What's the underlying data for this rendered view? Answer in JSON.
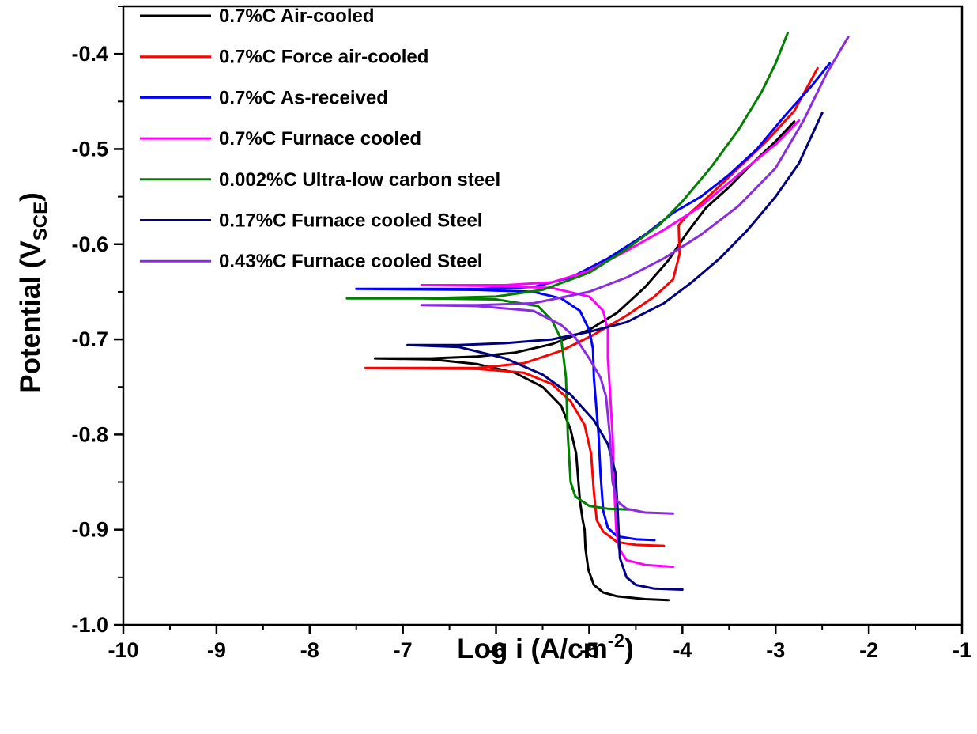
{
  "chart_data": {
    "type": "line",
    "title": "",
    "xlabel": {
      "main": "Log i (A/cm",
      "sup": "-2",
      "tail": ")"
    },
    "ylabel": {
      "main": "Potential (V",
      "sub": "SCE",
      "tail": ")"
    },
    "xlim": [
      -10,
      -1
    ],
    "ylim": [
      -1.0,
      -0.35
    ],
    "x_ticks": [
      "-10",
      "-9",
      "-8",
      "-7",
      "-6",
      "-5",
      "-4",
      "-3",
      "-2",
      "-1"
    ],
    "y_ticks": [
      "-1.0",
      "-0.9",
      "-0.8",
      "-0.7",
      "-0.6",
      "-0.5",
      "-0.4"
    ],
    "x_tick_values": [
      -10,
      -9,
      -8,
      -7,
      -6,
      -5,
      -4,
      -3,
      -2,
      -1
    ],
    "y_tick_values": [
      -1.0,
      -0.9,
      -0.8,
      -0.7,
      -0.6,
      -0.5,
      -0.4
    ],
    "grid": false,
    "legend_position": "top-left",
    "series": [
      {
        "name": "0.7%C Air-cooled",
        "color": "#000000",
        "points": [
          [
            -4.15,
            -0.974
          ],
          [
            -4.4,
            -0.973
          ],
          [
            -4.7,
            -0.97
          ],
          [
            -4.85,
            -0.966
          ],
          [
            -4.95,
            -0.958
          ],
          [
            -5.01,
            -0.942
          ],
          [
            -5.04,
            -0.92
          ],
          [
            -5.05,
            -0.9
          ],
          [
            -5.07,
            -0.89
          ],
          [
            -5.1,
            -0.87
          ],
          [
            -5.14,
            -0.82
          ],
          [
            -5.2,
            -0.795
          ],
          [
            -5.3,
            -0.77
          ],
          [
            -5.5,
            -0.75
          ],
          [
            -5.8,
            -0.735
          ],
          [
            -6.2,
            -0.726
          ],
          [
            -6.7,
            -0.721
          ],
          [
            -7.3,
            -0.72
          ],
          [
            -6.7,
            -0.72
          ],
          [
            -6.2,
            -0.718
          ],
          [
            -5.8,
            -0.714
          ],
          [
            -5.4,
            -0.705
          ],
          [
            -5.0,
            -0.69
          ],
          [
            -4.7,
            -0.672
          ],
          [
            -4.4,
            -0.645
          ],
          [
            -4.15,
            -0.617
          ],
          [
            -3.95,
            -0.588
          ],
          [
            -3.75,
            -0.562
          ],
          [
            -3.5,
            -0.54
          ],
          [
            -3.25,
            -0.515
          ],
          [
            -3.0,
            -0.492
          ],
          [
            -2.8,
            -0.471
          ]
        ]
      },
      {
        "name": "0.7%C Force air-cooled",
        "color": "#ff0000",
        "points": [
          [
            -4.2,
            -0.917
          ],
          [
            -4.5,
            -0.916
          ],
          [
            -4.7,
            -0.913
          ],
          [
            -4.85,
            -0.902
          ],
          [
            -4.92,
            -0.89
          ],
          [
            -4.95,
            -0.86
          ],
          [
            -4.98,
            -0.82
          ],
          [
            -5.05,
            -0.79
          ],
          [
            -5.2,
            -0.765
          ],
          [
            -5.4,
            -0.747
          ],
          [
            -5.7,
            -0.735
          ],
          [
            -6.2,
            -0.731
          ],
          [
            -7.4,
            -0.73
          ],
          [
            -6.2,
            -0.73
          ],
          [
            -5.7,
            -0.725
          ],
          [
            -5.3,
            -0.712
          ],
          [
            -4.95,
            -0.695
          ],
          [
            -4.6,
            -0.675
          ],
          [
            -4.3,
            -0.655
          ],
          [
            -4.1,
            -0.637
          ],
          [
            -4.03,
            -0.61
          ],
          [
            -4.04,
            -0.58
          ],
          [
            -3.95,
            -0.57
          ],
          [
            -3.7,
            -0.548
          ],
          [
            -3.4,
            -0.52
          ],
          [
            -3.1,
            -0.492
          ],
          [
            -2.8,
            -0.46
          ],
          [
            -2.55,
            -0.415
          ]
        ]
      },
      {
        "name": "0.7%C As-received",
        "color": "#0000ff",
        "points": [
          [
            -4.3,
            -0.911
          ],
          [
            -4.5,
            -0.91
          ],
          [
            -4.7,
            -0.907
          ],
          [
            -4.8,
            -0.898
          ],
          [
            -4.85,
            -0.88
          ],
          [
            -4.88,
            -0.84
          ],
          [
            -4.9,
            -0.8
          ],
          [
            -4.95,
            -0.74
          ],
          [
            -4.96,
            -0.71
          ],
          [
            -5.0,
            -0.69
          ],
          [
            -5.1,
            -0.67
          ],
          [
            -5.3,
            -0.657
          ],
          [
            -5.6,
            -0.65
          ],
          [
            -6.2,
            -0.648
          ],
          [
            -7.5,
            -0.647
          ],
          [
            -6.2,
            -0.647
          ],
          [
            -5.6,
            -0.645
          ],
          [
            -5.2,
            -0.635
          ],
          [
            -4.8,
            -0.615
          ],
          [
            -4.4,
            -0.59
          ],
          [
            -4.1,
            -0.567
          ],
          [
            -3.8,
            -0.55
          ],
          [
            -3.5,
            -0.527
          ],
          [
            -3.2,
            -0.5
          ],
          [
            -2.9,
            -0.465
          ],
          [
            -2.6,
            -0.432
          ],
          [
            -2.42,
            -0.41
          ]
        ]
      },
      {
        "name": "0.7%C Furnace cooled",
        "color": "#ff00ff",
        "points": [
          [
            -4.1,
            -0.939
          ],
          [
            -4.4,
            -0.937
          ],
          [
            -4.6,
            -0.932
          ],
          [
            -4.68,
            -0.92
          ],
          [
            -4.71,
            -0.9
          ],
          [
            -4.73,
            -0.86
          ],
          [
            -4.75,
            -0.8
          ],
          [
            -4.78,
            -0.75
          ],
          [
            -4.8,
            -0.72
          ],
          [
            -4.8,
            -0.69
          ],
          [
            -4.85,
            -0.67
          ],
          [
            -5.0,
            -0.655
          ],
          [
            -5.4,
            -0.646
          ],
          [
            -5.9,
            -0.644
          ],
          [
            -6.8,
            -0.643
          ],
          [
            -5.9,
            -0.643
          ],
          [
            -5.4,
            -0.64
          ],
          [
            -5.0,
            -0.628
          ],
          [
            -4.6,
            -0.607
          ],
          [
            -4.2,
            -0.585
          ],
          [
            -3.8,
            -0.56
          ],
          [
            -3.4,
            -0.527
          ],
          [
            -3.0,
            -0.495
          ],
          [
            -2.75,
            -0.47
          ]
        ]
      },
      {
        "name": "0.002%C Ultra-low carbon steel",
        "color": "#008000",
        "points": [
          [
            -4.55,
            -0.879
          ],
          [
            -4.8,
            -0.878
          ],
          [
            -5.0,
            -0.875
          ],
          [
            -5.15,
            -0.865
          ],
          [
            -5.2,
            -0.85
          ],
          [
            -5.23,
            -0.8
          ],
          [
            -5.25,
            -0.74
          ],
          [
            -5.3,
            -0.7
          ],
          [
            -5.4,
            -0.68
          ],
          [
            -5.55,
            -0.665
          ],
          [
            -6.0,
            -0.658
          ],
          [
            -6.8,
            -0.657
          ],
          [
            -7.6,
            -0.657
          ],
          [
            -6.8,
            -0.657
          ],
          [
            -6.0,
            -0.655
          ],
          [
            -5.5,
            -0.648
          ],
          [
            -5.0,
            -0.63
          ],
          [
            -4.6,
            -0.605
          ],
          [
            -4.25,
            -0.58
          ],
          [
            -4.0,
            -0.555
          ],
          [
            -3.7,
            -0.52
          ],
          [
            -3.4,
            -0.48
          ],
          [
            -3.15,
            -0.44
          ],
          [
            -3.0,
            -0.41
          ],
          [
            -2.87,
            -0.378
          ]
        ]
      },
      {
        "name": "0.17%C Furnace cooled Steel",
        "color": "#000080",
        "points": [
          [
            -4.0,
            -0.963
          ],
          [
            -4.3,
            -0.962
          ],
          [
            -4.5,
            -0.958
          ],
          [
            -4.6,
            -0.95
          ],
          [
            -4.67,
            -0.93
          ],
          [
            -4.7,
            -0.87
          ],
          [
            -4.72,
            -0.84
          ],
          [
            -4.8,
            -0.81
          ],
          [
            -4.95,
            -0.785
          ],
          [
            -5.2,
            -0.758
          ],
          [
            -5.5,
            -0.737
          ],
          [
            -5.9,
            -0.72
          ],
          [
            -6.4,
            -0.708
          ],
          [
            -6.95,
            -0.706
          ],
          [
            -6.4,
            -0.706
          ],
          [
            -5.9,
            -0.704
          ],
          [
            -5.4,
            -0.7
          ],
          [
            -5.0,
            -0.692
          ],
          [
            -4.6,
            -0.682
          ],
          [
            -4.2,
            -0.662
          ],
          [
            -3.9,
            -0.64
          ],
          [
            -3.6,
            -0.615
          ],
          [
            -3.3,
            -0.585
          ],
          [
            -3.0,
            -0.55
          ],
          [
            -2.75,
            -0.515
          ],
          [
            -2.5,
            -0.462
          ]
        ]
      },
      {
        "name": "0.43%C Furnace cooled Steel",
        "color": "#8a2be2",
        "points": [
          [
            -4.1,
            -0.883
          ],
          [
            -4.4,
            -0.882
          ],
          [
            -4.6,
            -0.878
          ],
          [
            -4.7,
            -0.87
          ],
          [
            -4.75,
            -0.85
          ],
          [
            -4.78,
            -0.8
          ],
          [
            -4.82,
            -0.76
          ],
          [
            -4.88,
            -0.74
          ],
          [
            -5.0,
            -0.72
          ],
          [
            -5.15,
            -0.698
          ],
          [
            -5.3,
            -0.685
          ],
          [
            -5.6,
            -0.67
          ],
          [
            -6.2,
            -0.665
          ],
          [
            -6.8,
            -0.664
          ],
          [
            -6.2,
            -0.664
          ],
          [
            -5.6,
            -0.662
          ],
          [
            -5.0,
            -0.65
          ],
          [
            -4.6,
            -0.635
          ],
          [
            -4.2,
            -0.615
          ],
          [
            -3.8,
            -0.59
          ],
          [
            -3.4,
            -0.56
          ],
          [
            -3.0,
            -0.52
          ],
          [
            -2.7,
            -0.47
          ],
          [
            -2.45,
            -0.42
          ],
          [
            -2.22,
            -0.382
          ]
        ]
      }
    ]
  }
}
